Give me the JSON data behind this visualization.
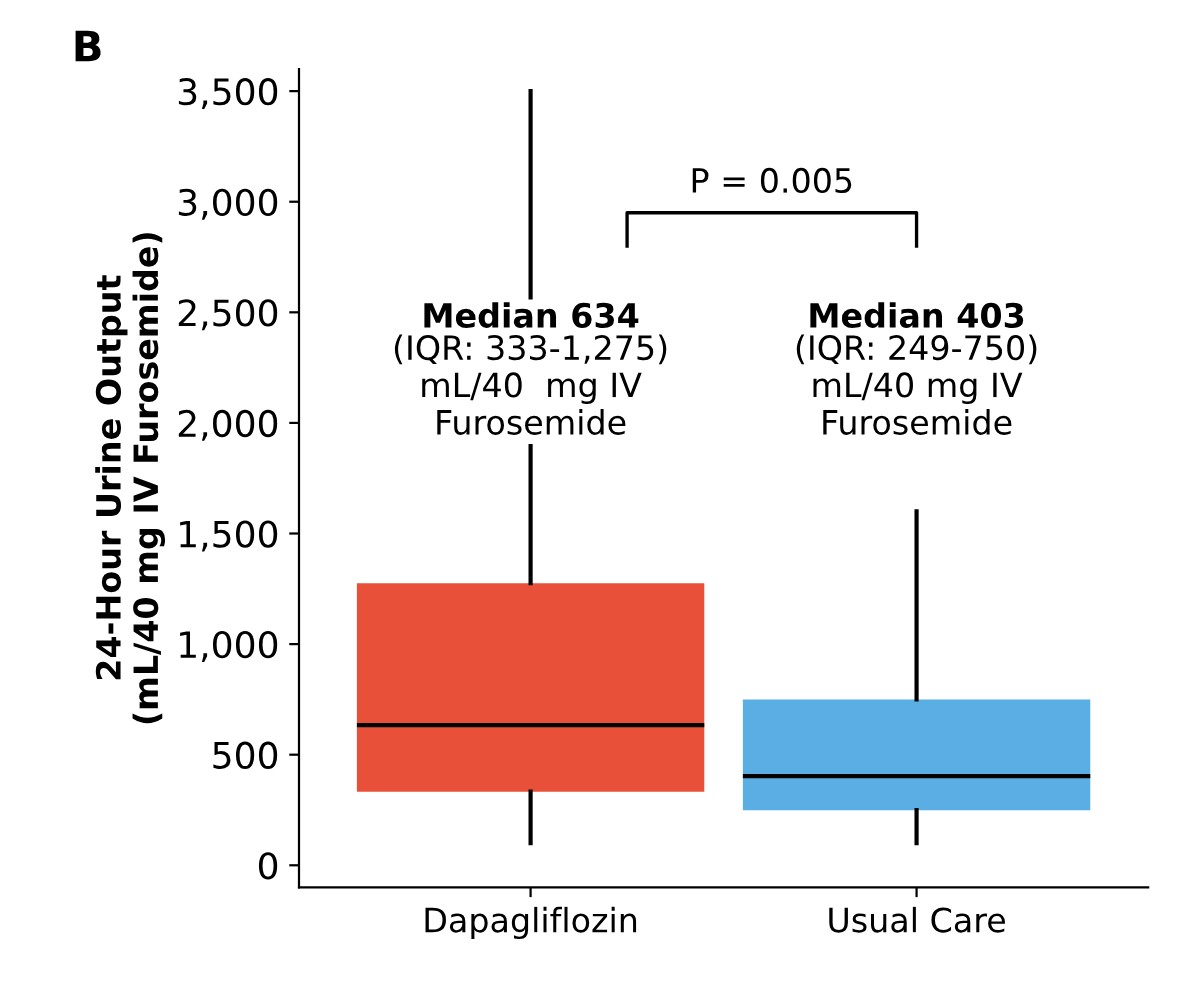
{
  "chart_data": {
    "type": "box",
    "title": "B",
    "ylabel": "24-Hour Urine Output\n(mL/40 mg IV Furosemide)",
    "categories": [
      "Dapagliflozin",
      "Usual Care"
    ],
    "boxes": [
      {
        "low": 100,
        "q1": 333,
        "median": 634,
        "q3": 1275,
        "high": 3500
      },
      {
        "low": 100,
        "q1": 249,
        "median": 403,
        "q3": 750,
        "high": 1600
      }
    ],
    "colors": [
      "#e8503a",
      "#5aaee3"
    ],
    "ylim": [
      -100,
      3600
    ],
    "yticks": [
      {
        "value": 0,
        "label": "0"
      },
      {
        "value": 500,
        "label": "500"
      },
      {
        "value": 1000,
        "label": "1,000"
      },
      {
        "value": 1500,
        "label": "1,500"
      },
      {
        "value": 2000,
        "label": "2,000"
      },
      {
        "value": 2500,
        "label": "2,500"
      },
      {
        "value": 3000,
        "label": "3,000"
      },
      {
        "value": 3500,
        "label": "3,500"
      }
    ],
    "grid": false,
    "annotations": [
      "P = 0.005",
      "Median 634\n(IQR: 333-1,275)\nmL/40  mg IV\nFurosemide",
      "Median 403\n(IQR: 249-750)\nmL/40 mg IV\nFurosemide"
    ]
  }
}
